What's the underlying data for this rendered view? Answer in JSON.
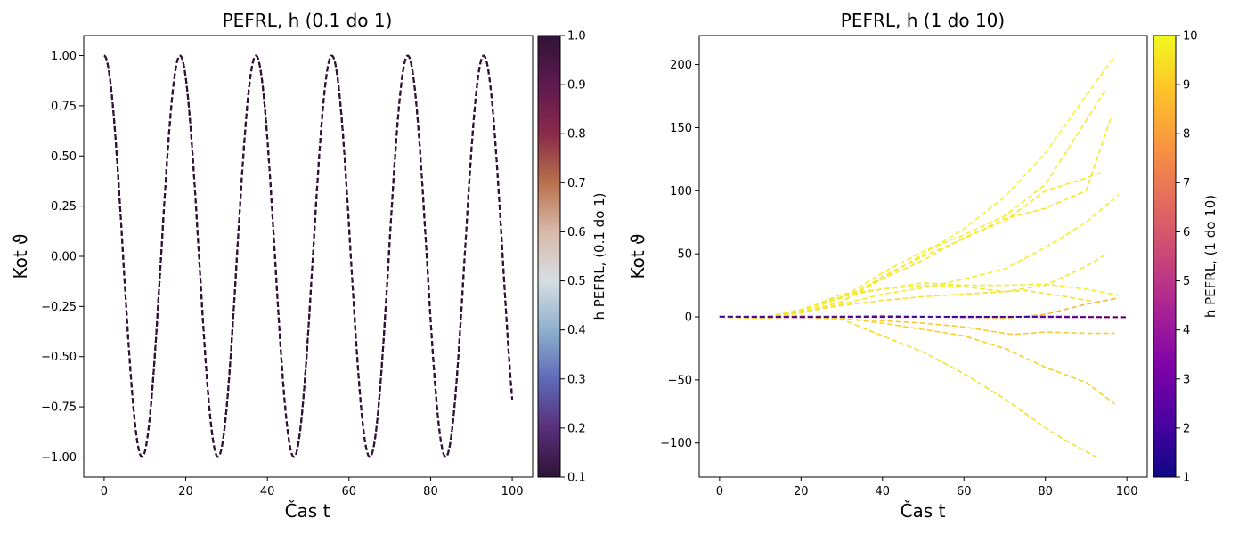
{
  "chart_data": [
    {
      "type": "line",
      "title": "PEFRL, h (0.1 do 1)",
      "xlabel": "Čas t",
      "ylabel": "Kot ϑ",
      "xlim": [
        -5,
        105
      ],
      "ylim": [
        -1.1,
        1.1
      ],
      "xticks": [
        0,
        20,
        40,
        60,
        80,
        100
      ],
      "yticks": [
        -1.0,
        -0.75,
        -0.5,
        -0.25,
        0.0,
        0.25,
        0.5,
        0.75,
        1.0
      ],
      "xtick_labels": [
        "0",
        "20",
        "40",
        "60",
        "80",
        "100"
      ],
      "ytick_labels": [
        "−1.00",
        "−0.75",
        "−0.50",
        "−0.25",
        "0.00",
        "0.25",
        "0.50",
        "0.75",
        "1.00"
      ],
      "line_style": "dashed",
      "curve": {
        "description_function": "cos",
        "amplitude": 1.0,
        "period": 18.6,
        "t_start": 0,
        "t_end": 100,
        "end_value": -0.7
      },
      "series": [
        {
          "h": 0.1
        },
        {
          "h": 0.2
        },
        {
          "h": 0.3
        },
        {
          "h": 0.4
        },
        {
          "h": 0.5
        },
        {
          "h": 0.6
        },
        {
          "h": 0.7
        },
        {
          "h": 0.8
        },
        {
          "h": 0.9
        },
        {
          "h": 1.0
        }
      ],
      "colorbar": {
        "label": "h  PEFRL, (0.1 do 1)",
        "colormap": "twilight_shifted",
        "range": [
          0.1,
          1.0
        ],
        "ticks": [
          0.1,
          0.2,
          0.3,
          0.4,
          0.5,
          0.6,
          0.7,
          0.8,
          0.9,
          1.0
        ],
        "tick_labels": [
          "0.1",
          "0.2",
          "0.3",
          "0.4",
          "0.5",
          "0.6",
          "0.7",
          "0.8",
          "0.9",
          "1.0"
        ],
        "colors": [
          "#2f1436",
          "#5a2f7a",
          "#5e6ab8",
          "#8fb0cc",
          "#d6dde3",
          "#d8b9aa",
          "#b8714d",
          "#8a2a4a",
          "#5e1a4f",
          "#2f1436"
        ]
      }
    },
    {
      "type": "line",
      "title": "PEFRL, h (1 do 10)",
      "xlabel": "Čas t",
      "ylabel": "Kot ϑ",
      "xlim": [
        -5,
        105
      ],
      "ylim": [
        -127,
        223
      ],
      "xticks": [
        0,
        20,
        40,
        60,
        80,
        100
      ],
      "yticks": [
        -100,
        -50,
        0,
        50,
        100,
        150,
        200
      ],
      "xtick_labels": [
        "0",
        "20",
        "40",
        "60",
        "80",
        "100"
      ],
      "ytick_labels": [
        "−100",
        "−50",
        "0",
        "50",
        "100",
        "150",
        "200"
      ],
      "line_style": "dashed",
      "series": [
        {
          "color": "#f7f233",
          "points": [
            [
              0,
              0.5
            ],
            [
              10,
              -1
            ],
            [
              20,
              3
            ],
            [
              30,
              12
            ],
            [
              40,
              30
            ],
            [
              50,
              50
            ],
            [
              60,
              70
            ],
            [
              70,
              95
            ],
            [
              80,
              130
            ],
            [
              97,
              207
            ]
          ]
        },
        {
          "color": "#f7ec2e",
          "points": [
            [
              0,
              0.5
            ],
            [
              10,
              -1
            ],
            [
              20,
              4
            ],
            [
              30,
              15
            ],
            [
              40,
              35
            ],
            [
              50,
              52
            ],
            [
              60,
              65
            ],
            [
              70,
              80
            ],
            [
              80,
              105
            ],
            [
              95,
              181
            ]
          ]
        },
        {
          "color": "#f8e530",
          "points": [
            [
              0,
              0
            ],
            [
              10,
              -1
            ],
            [
              20,
              3
            ],
            [
              30,
              12
            ],
            [
              40,
              32
            ],
            [
              50,
              48
            ],
            [
              60,
              62
            ],
            [
              70,
              78
            ],
            [
              80,
              86
            ],
            [
              90,
              100
            ],
            [
              96,
              157
            ]
          ]
        },
        {
          "color": "#f6e934",
          "points": [
            [
              0,
              0
            ],
            [
              10,
              -1
            ],
            [
              20,
              4
            ],
            [
              30,
              15
            ],
            [
              40,
              30
            ],
            [
              50,
              45
            ],
            [
              60,
              63
            ],
            [
              70,
              76
            ],
            [
              80,
              100
            ],
            [
              90,
              110
            ],
            [
              94,
              115
            ]
          ]
        },
        {
          "color": "#f3ee36",
          "points": [
            [
              0,
              0.5
            ],
            [
              10,
              -1
            ],
            [
              20,
              3
            ],
            [
              30,
              10
            ],
            [
              40,
              18
            ],
            [
              50,
              23
            ],
            [
              60,
              30
            ],
            [
              70,
              38
            ],
            [
              80,
              55
            ],
            [
              90,
              75
            ],
            [
              98,
              97
            ]
          ]
        },
        {
          "color": "#f2e838",
          "points": [
            [
              0,
              0
            ],
            [
              10,
              -1
            ],
            [
              20,
              5
            ],
            [
              30,
              18
            ],
            [
              40,
              22
            ],
            [
              50,
              25
            ],
            [
              60,
              24
            ],
            [
              70,
              20
            ],
            [
              80,
              25
            ],
            [
              90,
              40
            ],
            [
              95,
              50
            ]
          ]
        },
        {
          "color": "#f0ea3a",
          "points": [
            [
              0,
              0.5
            ],
            [
              10,
              -1
            ],
            [
              20,
              6
            ],
            [
              30,
              16
            ],
            [
              40,
              22
            ],
            [
              50,
              27
            ],
            [
              60,
              25
            ],
            [
              70,
              25
            ],
            [
              80,
              26
            ],
            [
              90,
              22
            ],
            [
              98,
              17
            ]
          ]
        },
        {
          "color": "#f4e136",
          "points": [
            [
              0,
              0
            ],
            [
              10,
              -1
            ],
            [
              20,
              4
            ],
            [
              30,
              9
            ],
            [
              40,
              13
            ],
            [
              50,
              16
            ],
            [
              60,
              18
            ],
            [
              70,
              20
            ],
            [
              75,
              21
            ],
            [
              85,
              16
            ],
            [
              92,
              12
            ]
          ]
        },
        {
          "color": "#f6c92f",
          "points": [
            [
              0,
              0
            ],
            [
              10,
              -1
            ],
            [
              20,
              0
            ],
            [
              30,
              -2
            ],
            [
              40,
              -3
            ],
            [
              50,
              -5
            ],
            [
              60,
              -8
            ],
            [
              72,
              -14
            ],
            [
              80,
              -12
            ],
            [
              90,
              -13
            ],
            [
              97,
              -13
            ]
          ]
        },
        {
          "color": "#f5d02c",
          "points": [
            [
              0,
              0
            ],
            [
              10,
              -1
            ],
            [
              20,
              1
            ],
            [
              30,
              -1
            ],
            [
              40,
              -5
            ],
            [
              50,
              -10
            ],
            [
              60,
              -15
            ],
            [
              70,
              -25
            ],
            [
              80,
              -40
            ],
            [
              90,
              -52
            ],
            [
              97,
              -69
            ]
          ]
        },
        {
          "color": "#f4df2c",
          "points": [
            [
              0,
              0
            ],
            [
              10,
              -1
            ],
            [
              20,
              1
            ],
            [
              30,
              -2
            ],
            [
              40,
              -15
            ],
            [
              50,
              -28
            ],
            [
              60,
              -45
            ],
            [
              70,
              -65
            ],
            [
              80,
              -88
            ],
            [
              85,
              -98
            ],
            [
              93,
              -112
            ]
          ]
        },
        {
          "color": "#f7b43a",
          "points": [
            [
              0,
              0
            ],
            [
              20,
              0
            ],
            [
              40,
              0
            ],
            [
              60,
              0
            ],
            [
              70,
              -1
            ],
            [
              80,
              2
            ],
            [
              90,
              10
            ],
            [
              98,
              15
            ]
          ]
        },
        {
          "color": "#f4a24a",
          "points": [
            [
              0,
              0.5
            ],
            [
              20,
              0.3
            ],
            [
              40,
              1
            ],
            [
              60,
              0
            ],
            [
              80,
              0.5
            ],
            [
              100,
              -0.5
            ]
          ]
        },
        {
          "color": "#e3705f",
          "points": [
            [
              0,
              0
            ],
            [
              20,
              -0.5
            ],
            [
              40,
              0.5
            ],
            [
              60,
              -0.5
            ],
            [
              80,
              0.5
            ],
            [
              100,
              0
            ]
          ]
        },
        {
          "color": "#c13f7a",
          "points": [
            [
              0,
              0.3
            ],
            [
              20,
              0.2
            ],
            [
              40,
              -0.2
            ],
            [
              60,
              0.3
            ],
            [
              80,
              -0.3
            ],
            [
              100,
              -0.5
            ]
          ]
        },
        {
          "color": "#8a13a0",
          "points": [
            [
              0,
              0.2
            ],
            [
              20,
              -0.2
            ],
            [
              40,
              0.3
            ],
            [
              60,
              -0.2
            ],
            [
              80,
              0.2
            ],
            [
              100,
              -0.4
            ]
          ]
        },
        {
          "color": "#3a049a",
          "points": [
            [
              0,
              0.1
            ],
            [
              20,
              0
            ],
            [
              40,
              -0.1
            ],
            [
              60,
              0.2
            ],
            [
              80,
              0
            ],
            [
              100,
              -0.2
            ]
          ]
        }
      ],
      "colorbar": {
        "label": "h  PEFRL, (1 do 10)",
        "colormap": "plasma",
        "range": [
          1,
          10
        ],
        "ticks": [
          1,
          2,
          3,
          4,
          5,
          6,
          7,
          8,
          9,
          10
        ],
        "tick_labels": [
          "1",
          "2",
          "3",
          "4",
          "5",
          "6",
          "7",
          "8",
          "9",
          "10"
        ],
        "colors": [
          "#0d0887",
          "#4c02a1",
          "#7e03a8",
          "#a82296",
          "#cb4679",
          "#e56b5d",
          "#f89441",
          "#fdc328",
          "#f0f921"
        ]
      }
    }
  ]
}
